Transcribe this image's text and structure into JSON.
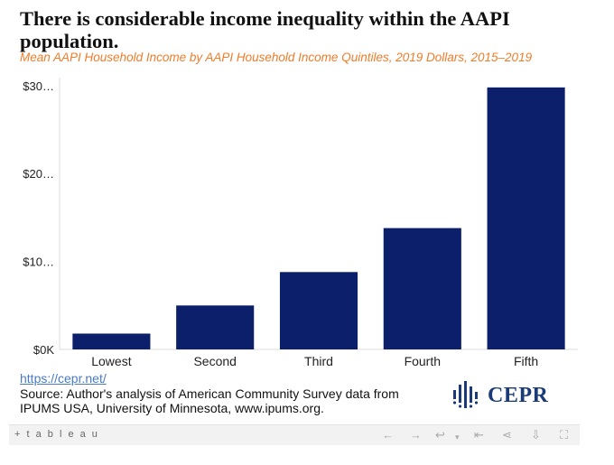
{
  "title": "There is considerable income inequality within the AAPI population.",
  "subtitle": "Mean AAPI Household Income by AAPI Household Income Quintiles, 2019 Dollars, 2015–2019",
  "chart_data": {
    "type": "bar",
    "categories": [
      "Lowest",
      "Second",
      "Third",
      "Fourth",
      "Fifth"
    ],
    "values": [
      1800,
      5000,
      8800,
      13800,
      29800
    ],
    "ylim": [
      0,
      30500
    ],
    "yticks": [
      0,
      10000,
      20000,
      30000
    ],
    "ytick_labels": [
      "$0K",
      "$10…",
      "$20…",
      "$30…"
    ],
    "bar_color": "#0b1f6b",
    "grid": false
  },
  "footer": {
    "link": "https://cepr.net/",
    "source": "Source: Author's analysis of American Community Survey data from IPUMS USA, University of Minnesota, www.ipums.org."
  },
  "logo": {
    "text": "CEPR",
    "color": "#1a3a78"
  },
  "toolbar": {
    "brand": "+ t a b l e a u",
    "icons": [
      "undo-icon",
      "redo-icon",
      "revert-icon",
      "dropdown-icon",
      "reset-icon",
      "share-icon",
      "download-icon",
      "fullscreen-icon"
    ]
  }
}
